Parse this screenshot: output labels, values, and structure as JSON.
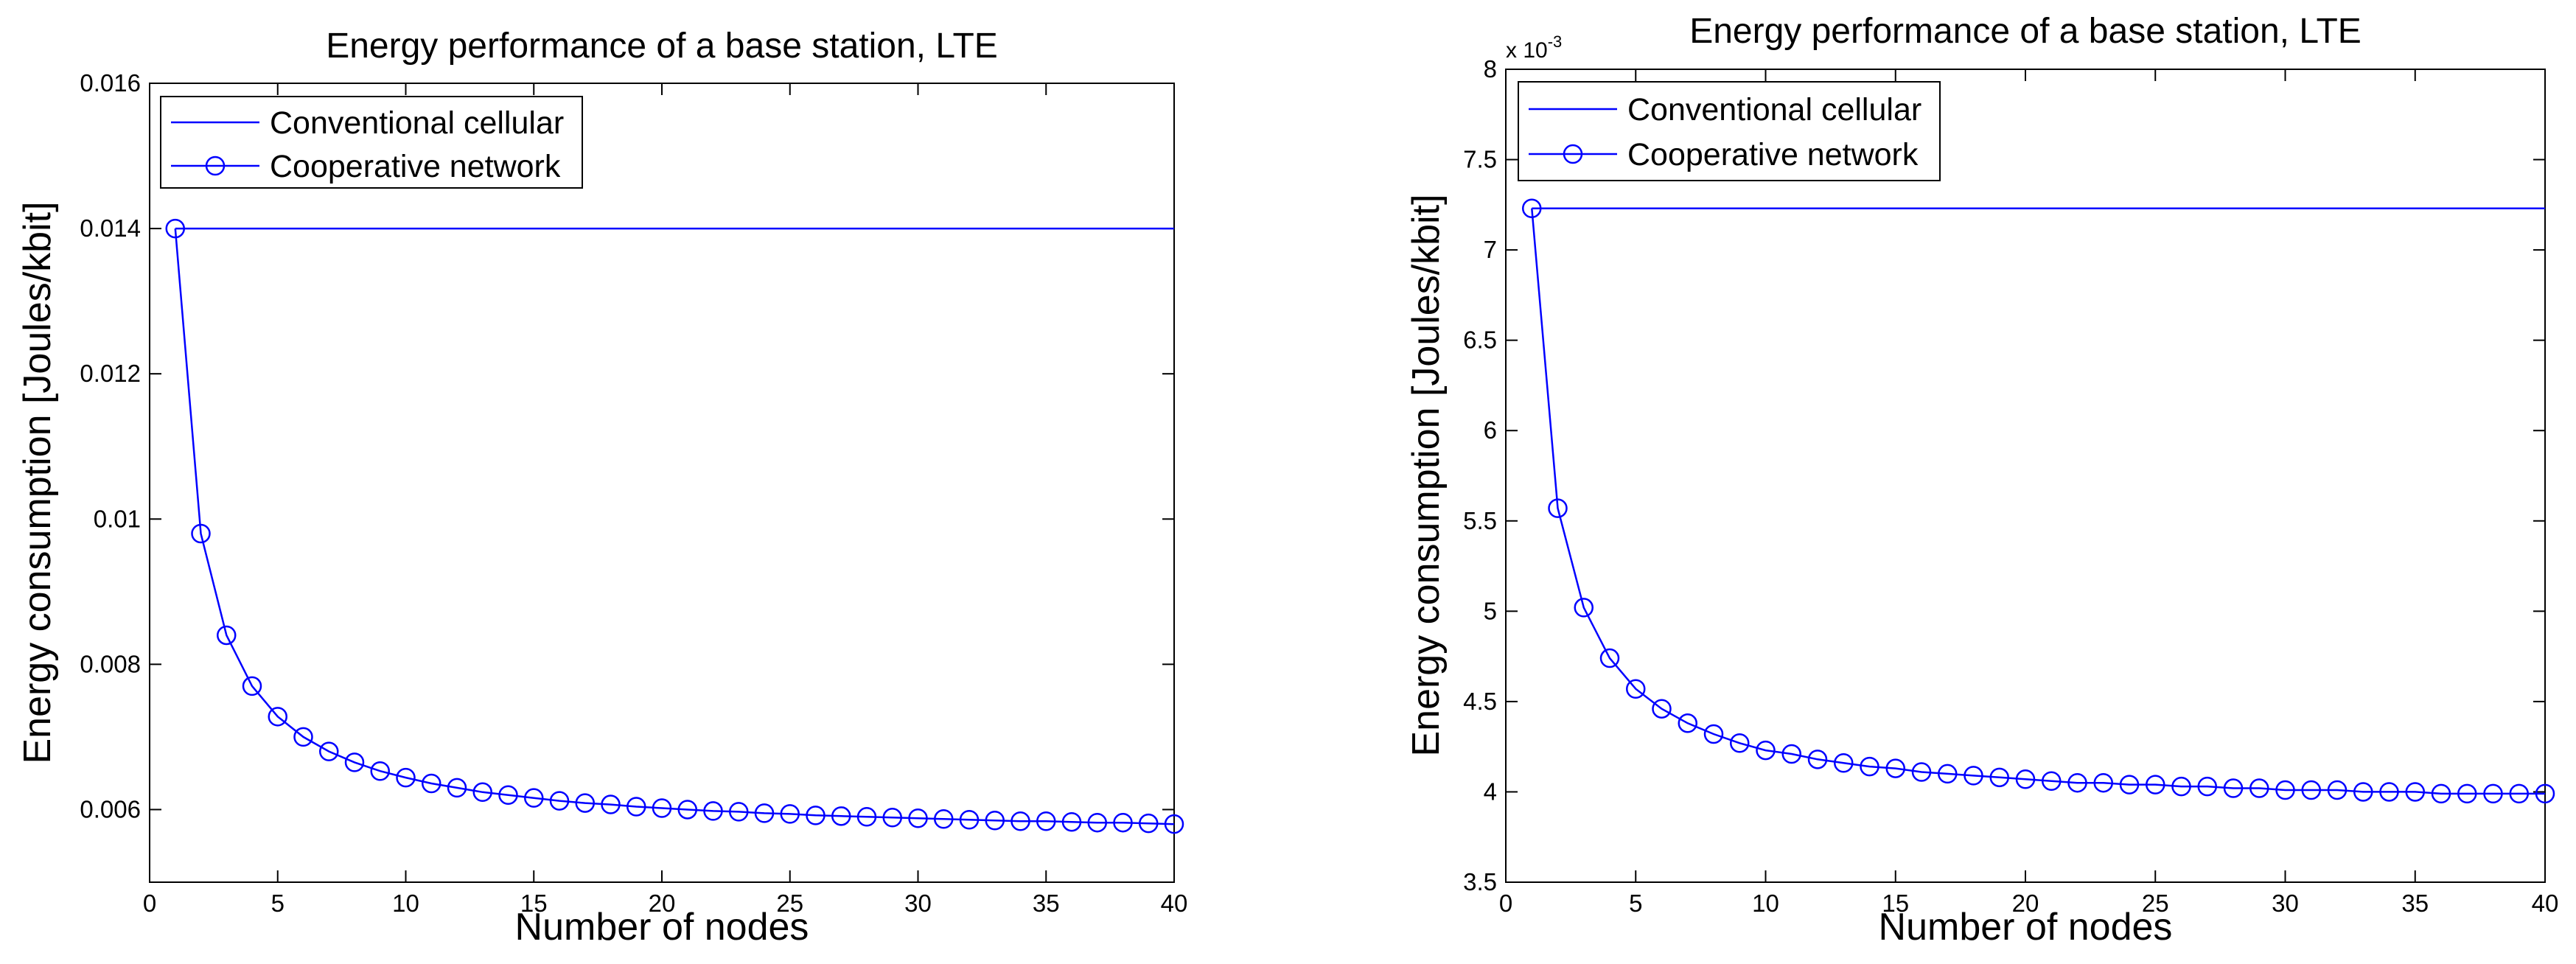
{
  "chart_data": [
    {
      "type": "line",
      "title": "Energy performance of a base station, LTE",
      "xlabel": "Number of nodes",
      "ylabel": "Energy consumption [Joules/kbit]",
      "xlim": [
        0,
        40
      ],
      "ylim": [
        0.005,
        0.016
      ],
      "xticks": [
        0,
        5,
        10,
        15,
        20,
        25,
        30,
        35,
        40
      ],
      "xtick_labels": [
        "0",
        "5",
        "10",
        "15",
        "20",
        "25",
        "30",
        "35",
        "40"
      ],
      "yticks": [
        0.006,
        0.008,
        0.01,
        0.012,
        0.014,
        0.016
      ],
      "ytick_labels": [
        "0.006",
        "0.008",
        "0.01",
        "0.012",
        "0.014",
        "0.016"
      ],
      "exponent_label": "",
      "legend_position": "top-left",
      "series": [
        {
          "name": "Conventional cellular",
          "marker": "none",
          "x": [
            1,
            40
          ],
          "values": [
            0.014,
            0.014
          ]
        },
        {
          "name": "Cooperative network",
          "marker": "circle",
          "x": [
            1,
            2,
            3,
            4,
            5,
            6,
            7,
            8,
            9,
            10,
            11,
            12,
            13,
            14,
            15,
            16,
            17,
            18,
            19,
            20,
            21,
            22,
            23,
            24,
            25,
            26,
            27,
            28,
            29,
            30,
            31,
            32,
            33,
            34,
            35,
            36,
            37,
            38,
            39,
            40
          ],
          "values": [
            0.014,
            0.0098,
            0.0084,
            0.0077,
            0.00728,
            0.007,
            0.0068,
            0.00665,
            0.00653,
            0.00644,
            0.00636,
            0.0063,
            0.00624,
            0.0062,
            0.00616,
            0.00612,
            0.00609,
            0.00607,
            0.00604,
            0.00602,
            0.006,
            0.00598,
            0.00597,
            0.00595,
            0.00594,
            0.00592,
            0.00591,
            0.0059,
            0.00589,
            0.00588,
            0.00587,
            0.00586,
            0.00585,
            0.00584,
            0.00584,
            0.00583,
            0.00582,
            0.00582,
            0.00581,
            0.0058
          ]
        }
      ]
    },
    {
      "type": "line",
      "title": "Energy performance of a base station, LTE",
      "xlabel": "Number of nodes",
      "ylabel": "Energy consumption [Joules/kbit]",
      "xlim": [
        0,
        40
      ],
      "ylim": [
        3.5,
        8
      ],
      "xticks": [
        0,
        5,
        10,
        15,
        20,
        25,
        30,
        35,
        40
      ],
      "xtick_labels": [
        "0",
        "5",
        "10",
        "15",
        "20",
        "25",
        "30",
        "35",
        "40"
      ],
      "yticks": [
        3.5,
        4,
        4.5,
        5,
        5.5,
        6,
        6.5,
        7,
        7.5,
        8
      ],
      "ytick_labels": [
        "3.5",
        "4",
        "4.5",
        "5",
        "5.5",
        "6",
        "6.5",
        "7",
        "7.5",
        "8"
      ],
      "exponent_label": "x 10",
      "exponent_power": "-3",
      "legend_position": "top-left",
      "series": [
        {
          "name": "Conventional cellular",
          "marker": "none",
          "x": [
            1,
            40
          ],
          "values": [
            7.23,
            7.23
          ]
        },
        {
          "name": "Cooperative network",
          "marker": "circle",
          "x": [
            1,
            2,
            3,
            4,
            5,
            6,
            7,
            8,
            9,
            10,
            11,
            12,
            13,
            14,
            15,
            16,
            17,
            18,
            19,
            20,
            21,
            22,
            23,
            24,
            25,
            26,
            27,
            28,
            29,
            30,
            31,
            32,
            33,
            34,
            35,
            36,
            37,
            38,
            39,
            40
          ],
          "values": [
            7.23,
            5.57,
            5.02,
            4.74,
            4.57,
            4.46,
            4.38,
            4.32,
            4.27,
            4.23,
            4.21,
            4.18,
            4.16,
            4.14,
            4.13,
            4.11,
            4.1,
            4.09,
            4.08,
            4.07,
            4.06,
            4.05,
            4.05,
            4.04,
            4.04,
            4.03,
            4.03,
            4.02,
            4.02,
            4.01,
            4.01,
            4.01,
            4.0,
            4.0,
            4.0,
            3.99,
            3.99,
            3.99,
            3.99,
            3.99
          ]
        }
      ]
    }
  ]
}
